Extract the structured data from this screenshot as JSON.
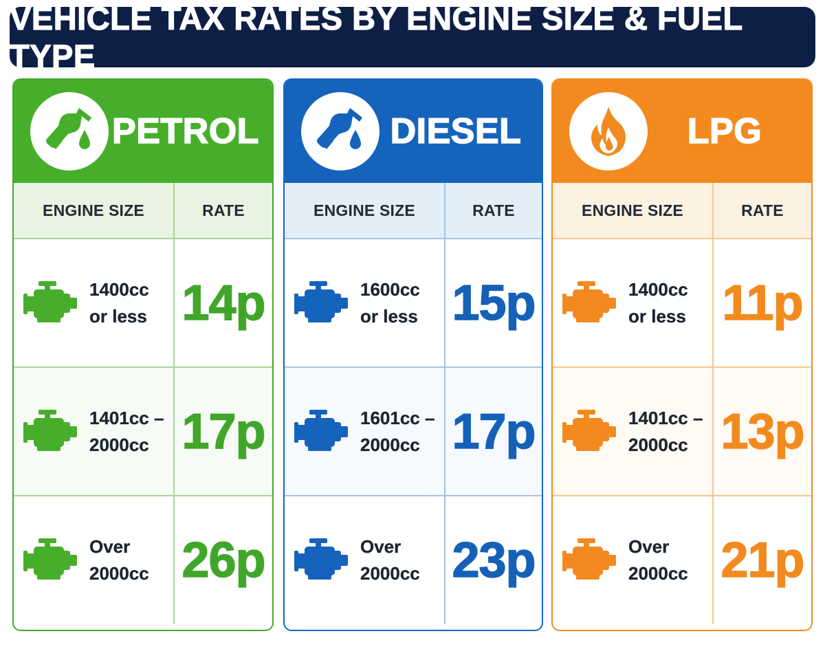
{
  "title": "VEHICLE TAX RATES BY ENGINE SIZE & FUEL TYPE",
  "colors": {
    "title_bg": "#0d1f45",
    "petrol": "#47ae2b",
    "diesel": "#1563bc",
    "lpg": "#f28a1f"
  },
  "columns": {
    "engine_size": "ENGINE SIZE",
    "rate": "RATE"
  },
  "panels": [
    {
      "fuel": "PETROL",
      "icon": "fuel-pump-icon",
      "rows": [
        {
          "size_line1": "1400cc",
          "size_line2": "or less",
          "rate": "14p"
        },
        {
          "size_line1": "1401cc –",
          "size_line2": "2000cc",
          "rate": "17p"
        },
        {
          "size_line1": "Over",
          "size_line2": "2000cc",
          "rate": "26p"
        }
      ]
    },
    {
      "fuel": "DIESEL",
      "icon": "fuel-pump-icon",
      "rows": [
        {
          "size_line1": "1600cc",
          "size_line2": "or less",
          "rate": "15p"
        },
        {
          "size_line1": "1601cc –",
          "size_line2": "2000cc",
          "rate": "17p"
        },
        {
          "size_line1": "Over",
          "size_line2": "2000cc",
          "rate": "23p"
        }
      ]
    },
    {
      "fuel": "LPG",
      "icon": "flame-icon",
      "rows": [
        {
          "size_line1": "1400cc",
          "size_line2": "or less",
          "rate": "11p"
        },
        {
          "size_line1": "1401cc –",
          "size_line2": "2000cc",
          "rate": "13p"
        },
        {
          "size_line1": "Over",
          "size_line2": "2000cc",
          "rate": "21p"
        }
      ]
    }
  ]
}
